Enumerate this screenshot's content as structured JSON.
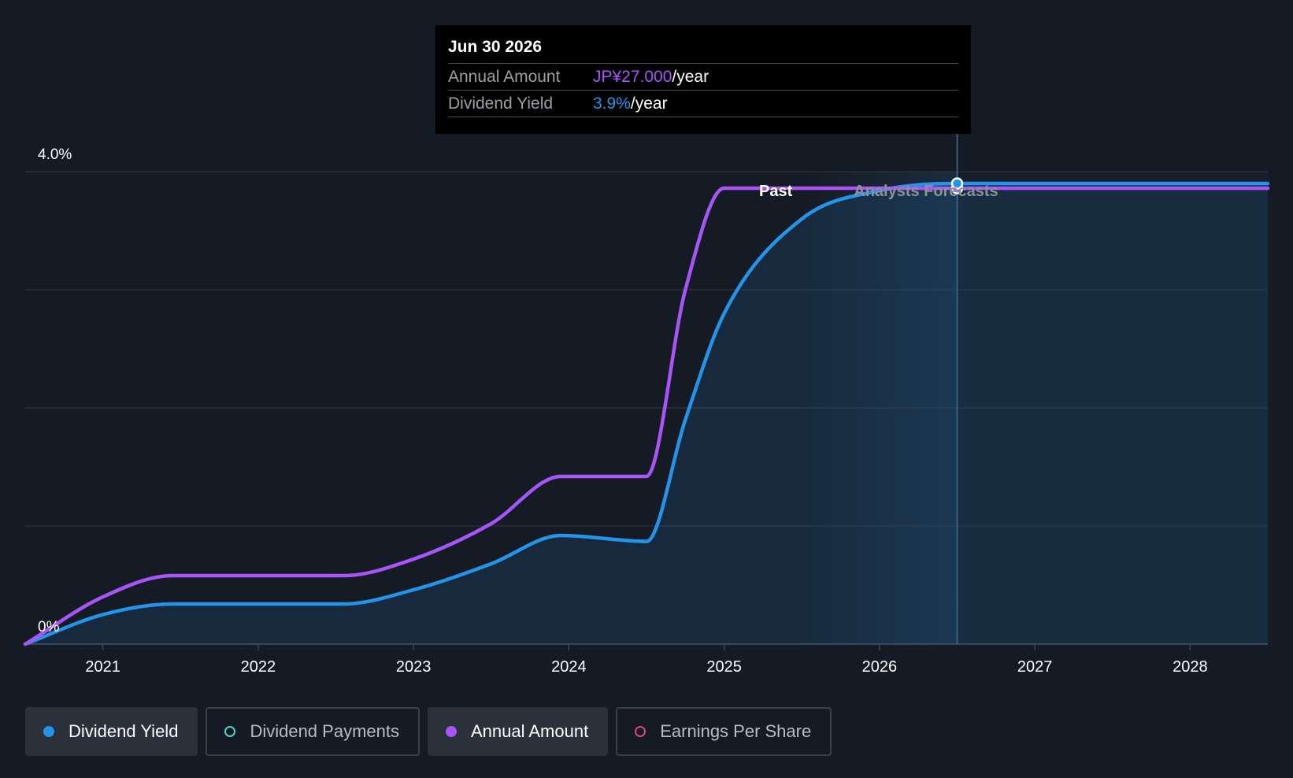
{
  "tooltip": {
    "date": "Jun 30 2026",
    "rows": [
      {
        "label": "Annual Amount",
        "value": "JP¥27.000",
        "unit": "/year",
        "color": "#a855f7"
      },
      {
        "label": "Dividend Yield",
        "value": "3.9%",
        "unit": "/year",
        "color": "#2394e8"
      }
    ]
  },
  "legend": [
    {
      "label": "Dividend Yield",
      "color": "#2394e8",
      "active": true,
      "hollow": false
    },
    {
      "label": "Dividend Payments",
      "color": "#4fd1c5",
      "active": false,
      "hollow": true
    },
    {
      "label": "Annual Amount",
      "color": "#a855f7",
      "active": true,
      "hollow": false
    },
    {
      "label": "Earnings Per Share",
      "color": "#d9467a",
      "active": false,
      "hollow": true
    }
  ],
  "chart_data": {
    "type": "line",
    "title": "",
    "xlabel": "",
    "ylabel": "",
    "x_ticks": [
      2021,
      2022,
      2023,
      2024,
      2025,
      2026,
      2027,
      2028
    ],
    "xlim": [
      2020.5,
      2028.5
    ],
    "ylim": [
      0,
      4.0
    ],
    "y_tick_labels": [
      {
        "value": 4.0,
        "label": "4.0%"
      },
      {
        "value": 0,
        "label": "0%"
      }
    ],
    "gridlines": [
      0,
      1,
      2,
      3,
      4
    ],
    "past_end": 2025.5,
    "forecast_start": 2025.75,
    "hover_x": 2026.5,
    "region_labels": {
      "past": "Past",
      "forecast": "Analysts Forecasts"
    },
    "series": [
      {
        "name": "Annual Amount",
        "color": "#a855f7",
        "area": false,
        "points": [
          [
            2020.5,
            0
          ],
          [
            2021.0,
            0.4
          ],
          [
            2021.45,
            0.58
          ],
          [
            2022.0,
            0.58
          ],
          [
            2022.55,
            0.58
          ],
          [
            2023.0,
            0.72
          ],
          [
            2023.5,
            1.02
          ],
          [
            2023.95,
            1.42
          ],
          [
            2024.5,
            1.42
          ],
          [
            2024.75,
            3.0
          ],
          [
            2025.0,
            3.86
          ],
          [
            2028.5,
            3.86
          ]
        ]
      },
      {
        "name": "Dividend Yield",
        "color": "#2394e8",
        "area": true,
        "points": [
          [
            2020.5,
            0
          ],
          [
            2021.0,
            0.25
          ],
          [
            2021.45,
            0.34
          ],
          [
            2022.0,
            0.34
          ],
          [
            2022.55,
            0.34
          ],
          [
            2023.0,
            0.46
          ],
          [
            2023.5,
            0.68
          ],
          [
            2023.95,
            0.92
          ],
          [
            2024.5,
            0.87
          ],
          [
            2024.75,
            1.9
          ],
          [
            2025.0,
            2.8
          ],
          [
            2025.5,
            3.6
          ],
          [
            2026.0,
            3.84
          ],
          [
            2026.5,
            3.9
          ],
          [
            2028.5,
            3.9
          ]
        ]
      }
    ]
  }
}
